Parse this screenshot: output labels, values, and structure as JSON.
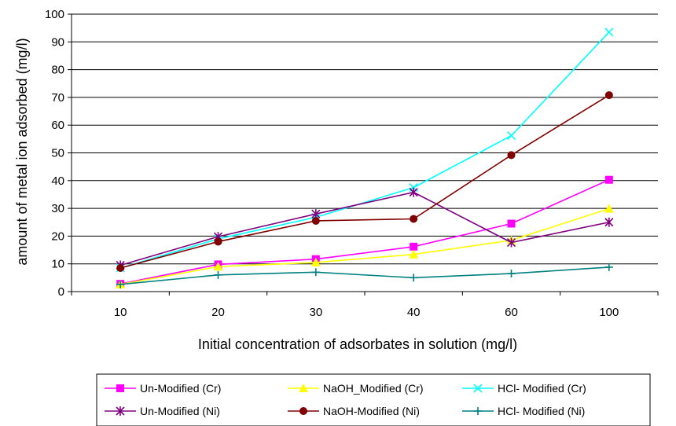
{
  "chart_data": {
    "type": "line",
    "title": "",
    "xlabel": "Initial concentration of adsorbates in solution (mg/l)",
    "ylabel": "amount of metal ion adsorbed (mg/l)",
    "categories": [
      "10",
      "20",
      "30",
      "40",
      "60",
      "100"
    ],
    "ylim": [
      0,
      100
    ],
    "yticks": [
      "0",
      "10",
      "20",
      "30",
      "40",
      "50",
      "60",
      "70",
      "80",
      "90",
      "100"
    ],
    "grid": "horizontal",
    "legend_position": "bottom",
    "series": [
      {
        "name": "Un-Modified (Cr)",
        "color": "#ff00ff",
        "marker": "square",
        "values": [
          2.8,
          9.8,
          11.7,
          16.2,
          24.5,
          40.3
        ]
      },
      {
        "name": "NaOH_Modified (Cr)",
        "color": "#ffff00",
        "marker": "triangle",
        "values": [
          2.6,
          9.0,
          10.5,
          13.4,
          18.5,
          29.9
        ]
      },
      {
        "name": "HCl- Modified (Cr)",
        "color": "#00ffff",
        "marker": "x",
        "values": [
          8.5,
          19.0,
          26.8,
          37.5,
          56.2,
          93.5
        ]
      },
      {
        "name": "Un-Modified (Ni)",
        "color": "#800080",
        "marker": "asterisk",
        "values": [
          9.5,
          19.8,
          28.0,
          35.8,
          17.7,
          25.0
        ]
      },
      {
        "name": "NaOH-Modified (Ni)",
        "color": "#800000",
        "marker": "circle",
        "values": [
          8.5,
          18.0,
          25.5,
          26.2,
          49.2,
          70.8
        ]
      },
      {
        "name": "HCl- Modified (Ni)",
        "color": "#008080",
        "marker": "plus",
        "values": [
          2.6,
          6.0,
          7.0,
          5.0,
          6.5,
          8.8
        ]
      }
    ]
  }
}
